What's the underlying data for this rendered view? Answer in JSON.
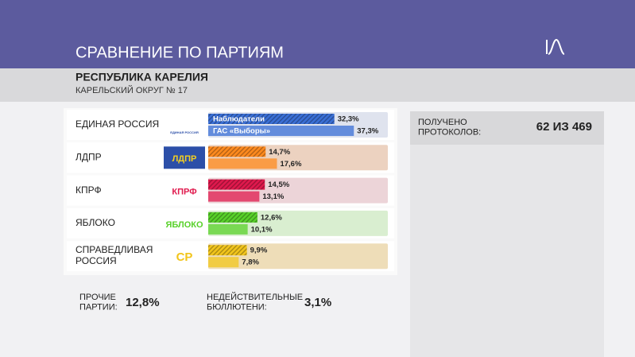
{
  "header": {
    "title": "СРАВНЕНИЕ ПО ПАРТИЯМ",
    "subtitle": "РЕСПУБЛИКА КАРЕЛИЯ",
    "district": "КАРЕЛЬСКИЙ ОКРУГ № 17"
  },
  "protocols": {
    "label": "ПОЛУЧЕНО ПРОТОКОЛОВ:",
    "value": "62 ИЗ 469"
  },
  "others": {
    "label": "ПРОЧИЕ ПАРТИИ:",
    "value": "12,8%"
  },
  "invalid": {
    "label": "НЕДЕЙСТВИТЕЛЬНЫЕ БЮЛЛЮТЕНИ:",
    "value": "3,1%"
  },
  "chart_data": {
    "type": "bar",
    "orientation": "horizontal",
    "categories": [
      "ЕДИНАЯ РОССИЯ",
      "ЛДПР",
      "КПРФ",
      "ЯБЛОКО",
      "СПРАВЕДЛИВАЯ РОССИЯ"
    ],
    "logos": [
      "ЕДИНАЯ РОССИЯ",
      "ЛДПР",
      "КПРФ",
      "ЯБЛОКО",
      "СР"
    ],
    "category_colors": [
      "#3a6fd6",
      "#ff8a1e",
      "#e0194d",
      "#58d12a",
      "#f2c51c"
    ],
    "track_colors": [
      "#dfe3ee",
      "#ecd2c0",
      "#ecd4d8",
      "#d9eed0",
      "#eeddb8"
    ],
    "xlim": [
      0,
      46
    ],
    "series": [
      {
        "name": "Наблюдатели",
        "values": [
          32.3,
          14.7,
          14.5,
          12.6,
          9.9
        ],
        "value_labels": [
          "32,3%",
          "14,7%",
          "14,5%",
          "12,6%",
          "9,9%"
        ]
      },
      {
        "name": "ГАС «Выборы»",
        "values": [
          37.3,
          17.6,
          13.1,
          10.1,
          7.8
        ],
        "value_labels": [
          "37,3%",
          "17,6%",
          "13,1%",
          "10,1%",
          "7,8%"
        ]
      }
    ]
  }
}
